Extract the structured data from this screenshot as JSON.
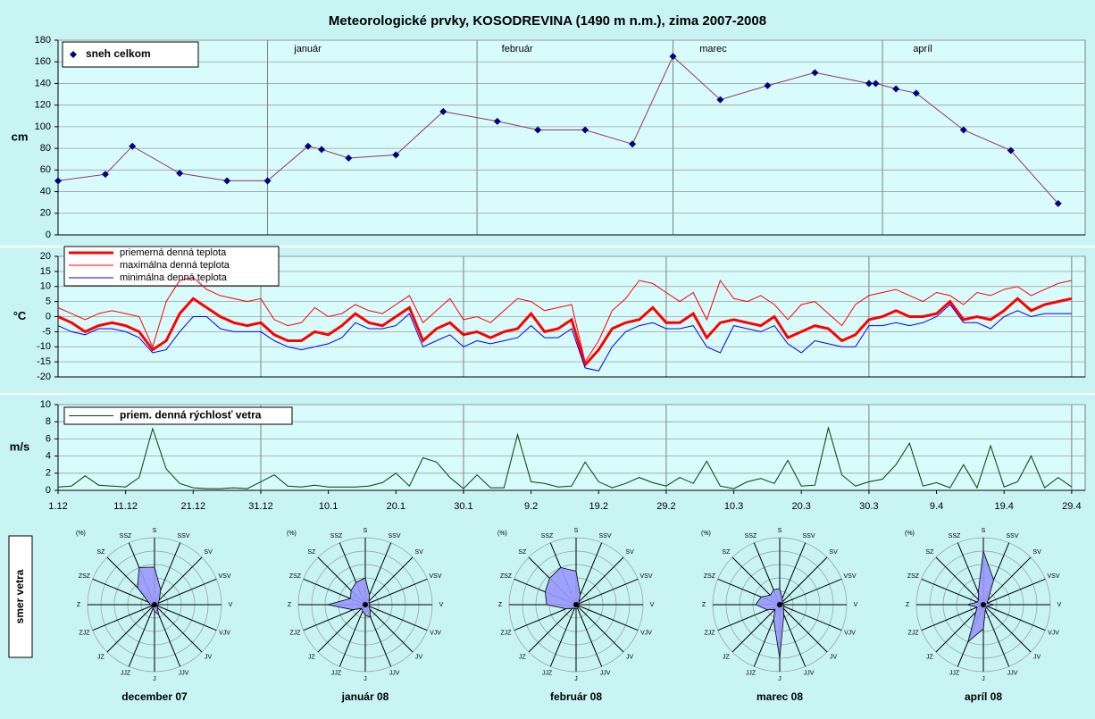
{
  "title": "Meteorologické prvky, KOSODREVINA (1490 m n.m.), zima 2007-2008",
  "wind_direction_label": "smer vetra",
  "chart_data": [
    {
      "type": "line",
      "ylabel": "cm",
      "ylim": [
        0,
        180
      ],
      "yticks": [
        0,
        20,
        40,
        60,
        80,
        100,
        120,
        140,
        160,
        180
      ],
      "grid": true,
      "xlim": [
        "1.12",
        "1.5"
      ],
      "xticks": [
        {
          "value": "1.1",
          "label": "január"
        },
        {
          "value": "1.2",
          "label": "február"
        },
        {
          "value": "1.3",
          "label": "marec"
        },
        {
          "value": "1.4",
          "label": "apríl"
        }
      ],
      "x": [
        "1.12",
        "8.12",
        "12.12",
        "19.12",
        "26.12",
        "1.1",
        "7.1",
        "9.1",
        "13.1",
        "20.1",
        "27.1",
        "4.2",
        "10.2",
        "17.2",
        "24.2",
        "1.3",
        "8.3",
        "15.3",
        "22.3",
        "30.3",
        "31.3",
        "3.4",
        "6.4",
        "13.4",
        "20.4",
        "27.4"
      ],
      "series": [
        {
          "name": "sneh celkom",
          "color": "#993366",
          "marker": "diamond",
          "marker_color": "#000080",
          "line_width": 1,
          "values": [
            50,
            56,
            82,
            57,
            50,
            50,
            82,
            79,
            71,
            74,
            114,
            105,
            97,
            97,
            84,
            165,
            125,
            138,
            150,
            140,
            140,
            135,
            131,
            97,
            78,
            29
          ]
        }
      ]
    },
    {
      "type": "line",
      "ylabel": "°C",
      "ylim": [
        -20,
        20
      ],
      "yticks": [
        -20,
        -15,
        -10,
        -5,
        0,
        5,
        10,
        15,
        20
      ],
      "grid": true,
      "xlim": [
        "1.12",
        "1.5"
      ],
      "xgrid": [
        "31.12",
        "30.1",
        "29.2",
        "30.3",
        "29.4"
      ],
      "x": [
        "1.12",
        "3.12",
        "5.12",
        "7.12",
        "9.12",
        "11.12",
        "13.12",
        "15.12",
        "17.12",
        "19.12",
        "21.12",
        "23.12",
        "25.12",
        "27.12",
        "29.12",
        "31.12",
        "2.1",
        "4.1",
        "6.1",
        "8.1",
        "10.1",
        "12.1",
        "14.1",
        "16.1",
        "18.1",
        "20.1",
        "22.1",
        "24.1",
        "26.1",
        "28.1",
        "30.1",
        "1.2",
        "3.2",
        "5.2",
        "7.2",
        "9.2",
        "11.2",
        "13.2",
        "15.2",
        "17.2",
        "19.2",
        "21.2",
        "23.2",
        "25.2",
        "27.2",
        "29.2",
        "2.3",
        "4.3",
        "6.3",
        "8.3",
        "10.3",
        "12.3",
        "14.3",
        "16.3",
        "18.3",
        "20.3",
        "22.3",
        "24.3",
        "26.3",
        "28.3",
        "30.3",
        "1.4",
        "3.4",
        "5.4",
        "7.4",
        "9.4",
        "11.4",
        "13.4",
        "15.4",
        "17.4",
        "19.4",
        "21.4",
        "23.4",
        "25.4",
        "27.4",
        "29.4"
      ],
      "series": [
        {
          "name": "priemerná denná teplota",
          "color": "#ff0000",
          "line_width": 3,
          "values": [
            0,
            -2,
            -5,
            -3,
            -2,
            -3,
            -5,
            -11,
            -8,
            1,
            6,
            3,
            0,
            -2,
            -3,
            -2,
            -6,
            -8,
            -8,
            -5,
            -6,
            -3,
            1,
            -2,
            -3,
            0,
            3,
            -8,
            -4,
            -2,
            -6,
            -5,
            -7,
            -5,
            -4,
            1,
            -5,
            -4,
            -1,
            -16,
            -11,
            -4,
            -2,
            -1,
            3,
            -2,
            -2,
            1,
            -7,
            -2,
            -1,
            -2,
            -3,
            0,
            -7,
            -5,
            -3,
            -4,
            -8,
            -6,
            -1,
            0,
            2,
            0,
            0,
            1,
            5,
            -1,
            0,
            -1,
            2,
            6,
            2,
            4,
            5,
            6
          ]
        },
        {
          "name": "maximálna denná teplota",
          "color": "#ff0000",
          "line_width": 1,
          "values": [
            3,
            1,
            -1,
            1,
            2,
            1,
            0,
            -10,
            5,
            12,
            13,
            9,
            7,
            6,
            5,
            6,
            -1,
            -3,
            -2,
            3,
            0,
            1,
            4,
            2,
            1,
            4,
            7,
            -2,
            2,
            6,
            -1,
            0,
            -2,
            2,
            6,
            5,
            2,
            3,
            4,
            -15,
            -8,
            2,
            6,
            12,
            11,
            8,
            5,
            8,
            -1,
            12,
            6,
            5,
            7,
            4,
            -1,
            4,
            5,
            1,
            -3,
            4,
            7,
            8,
            9,
            7,
            5,
            8,
            7,
            4,
            8,
            7,
            9,
            10,
            7,
            9,
            11,
            12
          ]
        },
        {
          "name": "minimálna denná teplota",
          "color": "#0000ff",
          "line_width": 1,
          "values": [
            -3,
            -5,
            -6,
            -4,
            -4,
            -5,
            -7,
            -12,
            -11,
            -5,
            0,
            0,
            -4,
            -5,
            -5,
            -5,
            -8,
            -10,
            -11,
            -10,
            -9,
            -7,
            -2,
            -4,
            -4,
            -3,
            1,
            -10,
            -8,
            -6,
            -10,
            -8,
            -9,
            -8,
            -7,
            -3,
            -7,
            -7,
            -4,
            -17,
            -18,
            -10,
            -5,
            -3,
            -2,
            -4,
            -4,
            -3,
            -10,
            -12,
            -3,
            -4,
            -5,
            -3,
            -9,
            -12,
            -8,
            -9,
            -10,
            -10,
            -3,
            -3,
            -2,
            -3,
            -2,
            0,
            4,
            -2,
            -2,
            -4,
            0,
            2,
            0,
            1,
            1,
            1
          ]
        }
      ]
    },
    {
      "type": "line",
      "ylabel": "m/s",
      "ylim": [
        0,
        10
      ],
      "yticks": [
        0,
        2,
        4,
        6,
        8,
        10
      ],
      "grid": true,
      "xlim": [
        "1.12",
        "1.5"
      ],
      "xgrid": [
        "31.12",
        "30.1",
        "29.2",
        "30.3",
        "29.4"
      ],
      "xticks": [
        "1.12",
        "11.12",
        "21.12",
        "31.12",
        "10.1",
        "20.1",
        "30.1",
        "9.2",
        "19.2",
        "29.2",
        "10.3",
        "20.3",
        "30.3",
        "9.4",
        "19.4",
        "29.4"
      ],
      "x": [
        "1.12",
        "3.12",
        "5.12",
        "7.12",
        "9.12",
        "11.12",
        "13.12",
        "15.12",
        "17.12",
        "19.12",
        "21.12",
        "23.12",
        "25.12",
        "27.12",
        "29.12",
        "31.12",
        "2.1",
        "4.1",
        "6.1",
        "8.1",
        "10.1",
        "12.1",
        "14.1",
        "16.1",
        "18.1",
        "20.1",
        "22.1",
        "24.1",
        "26.1",
        "28.1",
        "30.1",
        "1.2",
        "3.2",
        "5.2",
        "7.2",
        "9.2",
        "11.2",
        "13.2",
        "15.2",
        "17.2",
        "19.2",
        "21.2",
        "23.2",
        "25.2",
        "27.2",
        "29.2",
        "2.3",
        "4.3",
        "6.3",
        "8.3",
        "10.3",
        "12.3",
        "14.3",
        "16.3",
        "18.3",
        "20.3",
        "22.3",
        "24.3",
        "26.3",
        "28.3",
        "30.3",
        "1.4",
        "3.4",
        "5.4",
        "7.4",
        "9.4",
        "11.4",
        "13.4",
        "15.4",
        "17.4",
        "19.4",
        "21.4",
        "23.4",
        "25.4",
        "27.4",
        "29.4"
      ],
      "series": [
        {
          "name": "priem. denná rýchlosť vetra",
          "color": "#004000",
          "line_width": 1,
          "values": [
            0.4,
            0.5,
            1.7,
            0.6,
            0.5,
            0.4,
            1.5,
            7.2,
            2.5,
            0.8,
            0.3,
            0.2,
            0.2,
            0.3,
            0.2,
            1.0,
            1.8,
            0.5,
            0.4,
            0.6,
            0.4,
            0.4,
            0.4,
            0.5,
            0.9,
            2.0,
            0.5,
            3.8,
            3.3,
            1.5,
            0.2,
            1.8,
            0.3,
            0.3,
            6.5,
            1.0,
            0.8,
            0.4,
            0.5,
            3.3,
            1.0,
            0.3,
            0.8,
            1.5,
            0.9,
            0.5,
            1.5,
            0.8,
            3.4,
            0.5,
            0.2,
            1.0,
            1.4,
            0.8,
            3.5,
            0.5,
            0.6,
            7.3,
            1.8,
            0.5,
            1.0,
            1.3,
            3.0,
            5.5,
            0.5,
            0.9,
            0.3,
            3.0,
            0.3,
            5.2,
            0.4,
            1.0,
            4.0,
            0.3,
            1.5,
            0.4
          ]
        }
      ]
    },
    {
      "type": "radar",
      "title": "december 07",
      "unit_label": "(%)",
      "rlim": [
        0,
        50
      ],
      "color": "#9999ff",
      "categories": [
        "S",
        "SSV",
        "SV",
        "VSV",
        "V",
        "VJV",
        "JV",
        "JJV",
        "J",
        "JJZ",
        "JZ",
        "ZJZ",
        "Z",
        "ZSZ",
        "SZ",
        "SSZ"
      ],
      "values": [
        28,
        12,
        5,
        3,
        3,
        2,
        3,
        8,
        5,
        3,
        2,
        2,
        3,
        5,
        18,
        30
      ]
    },
    {
      "type": "radar",
      "title": "január 08",
      "unit_label": "(%)",
      "rlim": [
        0,
        50
      ],
      "color": "#9999ff",
      "categories": [
        "S",
        "SSV",
        "SV",
        "VSV",
        "V",
        "VJV",
        "JV",
        "JJV",
        "J",
        "JJZ",
        "JZ",
        "ZJZ",
        "Z",
        "ZSZ",
        "SZ",
        "SSZ"
      ],
      "values": [
        20,
        8,
        4,
        3,
        3,
        3,
        5,
        10,
        8,
        5,
        4,
        10,
        28,
        12,
        15,
        18
      ]
    },
    {
      "type": "radar",
      "title": "február 08",
      "unit_label": "(%)",
      "rlim": [
        0,
        50
      ],
      "color": "#9999ff",
      "categories": [
        "S",
        "SSV",
        "SV",
        "VSV",
        "V",
        "VJV",
        "JV",
        "JJV",
        "J",
        "JJZ",
        "JZ",
        "ZJZ",
        "Z",
        "ZSZ",
        "SZ",
        "SSZ"
      ],
      "values": [
        25,
        8,
        3,
        2,
        2,
        2,
        2,
        3,
        3,
        3,
        4,
        8,
        22,
        25,
        28,
        30
      ]
    },
    {
      "type": "radar",
      "title": "marec 08",
      "unit_label": "(%)",
      "rlim": [
        0,
        50
      ],
      "color": "#9999ff",
      "categories": [
        "S",
        "SSV",
        "SV",
        "VSV",
        "V",
        "VJV",
        "JV",
        "JJV",
        "J",
        "JJZ",
        "JZ",
        "ZJZ",
        "Z",
        "ZSZ",
        "SZ",
        "SSZ"
      ],
      "values": [
        12,
        5,
        3,
        2,
        3,
        3,
        4,
        8,
        40,
        12,
        5,
        10,
        18,
        15,
        10,
        12
      ]
    },
    {
      "type": "radar",
      "title": "apríl 08",
      "unit_label": "(%)",
      "rlim": [
        0,
        50
      ],
      "color": "#9999ff",
      "categories": [
        "S",
        "SSV",
        "SV",
        "VSV",
        "V",
        "VJV",
        "JV",
        "JJV",
        "J",
        "JJZ",
        "JZ",
        "ZJZ",
        "Z",
        "ZSZ",
        "SZ",
        "SSZ"
      ],
      "values": [
        40,
        20,
        5,
        3,
        8,
        3,
        3,
        4,
        18,
        30,
        8,
        5,
        12,
        5,
        5,
        10
      ]
    }
  ]
}
